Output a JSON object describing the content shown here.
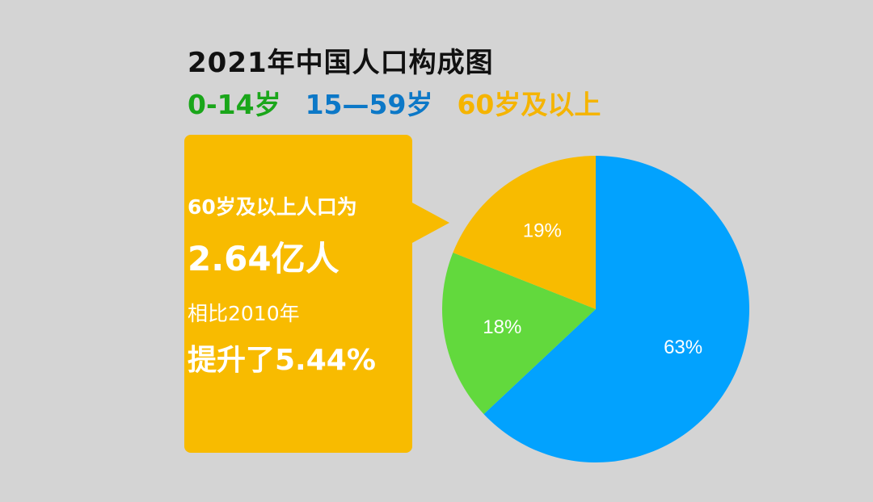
{
  "title": "2021年中国人口构成图",
  "chart_data": {
    "type": "pie",
    "title": "2021年中国人口构成图",
    "legend_position": "top",
    "series": [
      {
        "name": "0-14岁",
        "value": 18,
        "label": "18%",
        "color": "#62d93d",
        "legend_color": "#1aa61a"
      },
      {
        "name": "15—59岁",
        "value": 63,
        "label": "63%",
        "color": "#02a2fe",
        "legend_color": "#0c78c7"
      },
      {
        "name": "60岁及以上",
        "value": 19,
        "label": "19%",
        "color": "#f8bb00",
        "legend_color": "#f5b400"
      }
    ],
    "order_clockwise_from_top": [
      "15—59岁",
      "0-14岁",
      "60岁及以上"
    ]
  },
  "callout": {
    "line1": "60岁及以上人口为",
    "line2": "2.64亿人",
    "line3": "相比2010年",
    "line4": "提升了5.44%"
  }
}
